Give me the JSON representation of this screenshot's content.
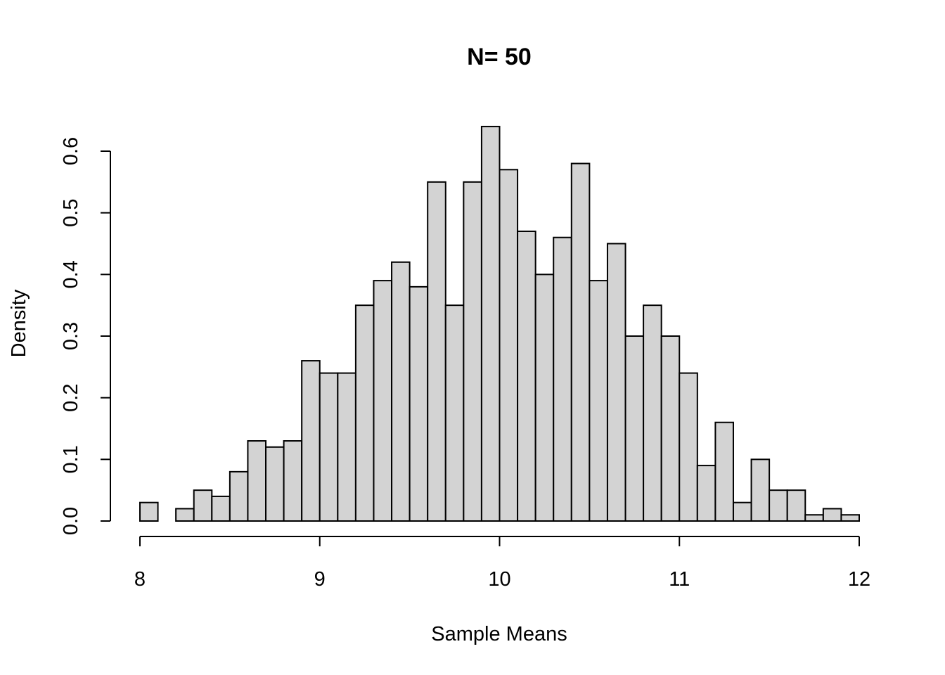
{
  "chart_data": {
    "type": "bar",
    "title": "N= 50",
    "xlabel": "Sample Means",
    "ylabel": "Density",
    "xlim": [
      8,
      12
    ],
    "ylim": [
      0,
      0.6
    ],
    "x_ticks": [
      8,
      9,
      10,
      11,
      12
    ],
    "x_tick_labels": [
      "8",
      "9",
      "10",
      "11",
      "12"
    ],
    "y_ticks": [
      0,
      0.1,
      0.2,
      0.3,
      0.4,
      0.5,
      0.6
    ],
    "y_tick_labels": [
      "0.0",
      "0.1",
      "0.2",
      "0.3",
      "0.4",
      "0.5",
      "0.6"
    ],
    "bin_width": 0.1,
    "bin_starts": [
      8.0,
      8.1,
      8.2,
      8.3,
      8.4,
      8.5,
      8.6,
      8.7,
      8.8,
      8.9,
      9.0,
      9.1,
      9.2,
      9.3,
      9.4,
      9.5,
      9.6,
      9.7,
      9.8,
      9.9,
      10.0,
      10.1,
      10.2,
      10.3,
      10.4,
      10.5,
      10.6,
      10.7,
      10.8,
      10.9,
      11.0,
      11.1,
      11.2,
      11.3,
      11.4,
      11.5,
      11.6,
      11.7,
      11.8,
      11.9
    ],
    "values": [
      0.03,
      0.0,
      0.02,
      0.05,
      0.04,
      0.08,
      0.13,
      0.12,
      0.13,
      0.26,
      0.24,
      0.24,
      0.35,
      0.39,
      0.42,
      0.38,
      0.55,
      0.35,
      0.55,
      0.64,
      0.57,
      0.47,
      0.4,
      0.46,
      0.58,
      0.39,
      0.45,
      0.3,
      0.35,
      0.3,
      0.24,
      0.09,
      0.16,
      0.03,
      0.1,
      0.05,
      0.05,
      0.01,
      0.02,
      0.01
    ],
    "grid": false,
    "bar_color": "#d3d3d3",
    "bar_edge_color": "#000000"
  }
}
